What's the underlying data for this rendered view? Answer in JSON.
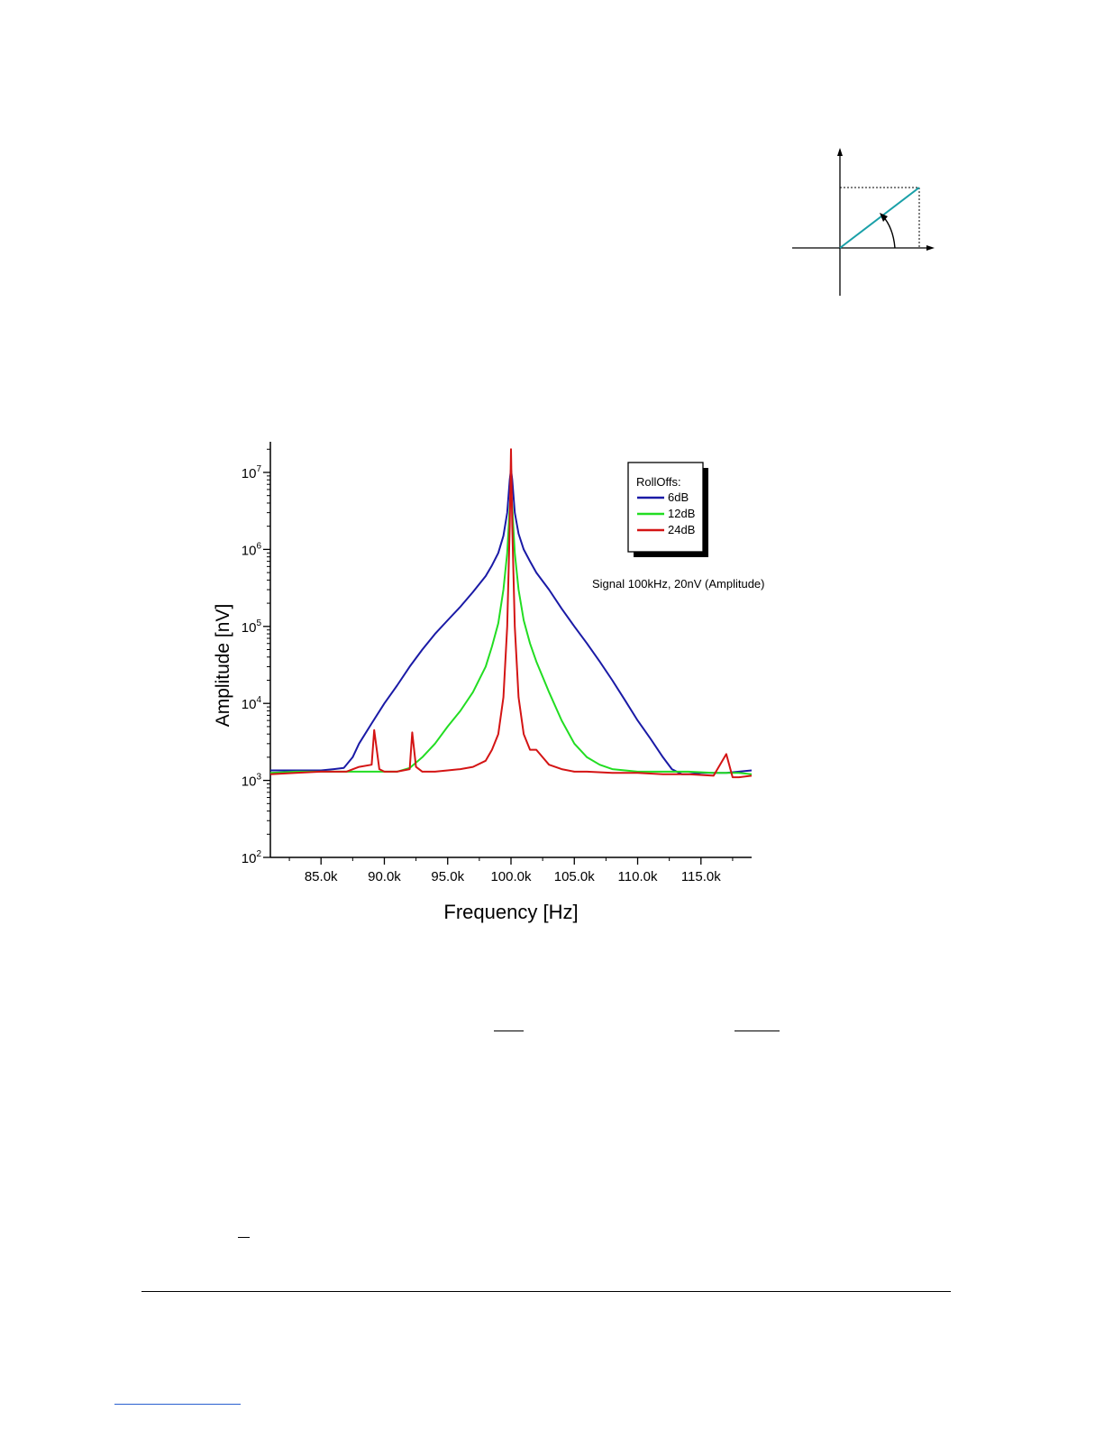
{
  "colors": {
    "series_6dB": "#1a1aa6",
    "series_12dB": "#22dd22",
    "series_24dB": "#d41414",
    "phasor_line": "#1aa0a8"
  },
  "phasor_diagram": {
    "icon": "phasor-vector-diagram"
  },
  "chart_data": {
    "type": "line",
    "title": "",
    "xlabel": "Frequency [Hz]",
    "ylabel": "Amplitude [nV]",
    "xlim": [
      81000,
      119000
    ],
    "ylim": [
      100,
      25000000
    ],
    "yscale": "log",
    "grid": false,
    "xticks": [
      85000,
      90000,
      95000,
      100000,
      105000,
      110000,
      115000
    ],
    "xtick_labels": [
      "85.0k",
      "90.0k",
      "95.0k",
      "100.0k",
      "105.0k",
      "110.0k",
      "115.0k"
    ],
    "yticks": [
      {
        "value": 100,
        "base": "10",
        "exp": "2"
      },
      {
        "value": 1000,
        "base": "10",
        "exp": "3"
      },
      {
        "value": 10000,
        "base": "10",
        "exp": "4"
      },
      {
        "value": 100000,
        "base": "10",
        "exp": "5"
      },
      {
        "value": 1000000,
        "base": "10",
        "exp": "6"
      },
      {
        "value": 10000000,
        "base": "10",
        "exp": "7"
      }
    ],
    "legend": {
      "title": "RollOffs:",
      "placement": "top-right"
    },
    "annotation": "Signal 100kHz, 20nV (Amplitude)",
    "series": [
      {
        "name": "6dB",
        "x": [
          81000,
          82000,
          83000,
          84000,
          85000,
          86000,
          86800,
          87500,
          88000,
          89000,
          90000,
          91000,
          92000,
          93000,
          94000,
          95000,
          96000,
          97000,
          98000,
          98500,
          99000,
          99400,
          99700,
          99900,
          100000,
          100100,
          100300,
          100600,
          101000,
          101500,
          102000,
          103000,
          104000,
          105000,
          106000,
          107000,
          108000,
          109000,
          110000,
          111000,
          112000,
          112700,
          113500,
          114000,
          115000,
          116000,
          117000,
          118000,
          119000
        ],
        "y": [
          1350,
          1350,
          1350,
          1350,
          1350,
          1400,
          1450,
          2000,
          3000,
          5500,
          10000,
          17000,
          30000,
          50000,
          80000,
          120000,
          180000,
          280000,
          450000,
          620000,
          900000,
          1500000,
          3000000,
          8000000,
          11000000,
          8000000,
          3000000,
          1600000,
          1000000,
          700000,
          500000,
          300000,
          170000,
          100000,
          60000,
          35000,
          20000,
          11000,
          6000,
          3500,
          2000,
          1400,
          1200,
          1200,
          1250,
          1250,
          1250,
          1300,
          1350
        ]
      },
      {
        "name": "12dB",
        "x": [
          81000,
          83000,
          85000,
          87000,
          89000,
          91000,
          92000,
          92500,
          93000,
          94000,
          95000,
          96000,
          97000,
          98000,
          98500,
          99000,
          99400,
          99700,
          99900,
          100000,
          100100,
          100300,
          100600,
          101000,
          101500,
          102000,
          103000,
          104000,
          105000,
          106000,
          107000,
          108000,
          110000,
          112000,
          114000,
          116000,
          118000,
          119000
        ],
        "y": [
          1250,
          1300,
          1300,
          1300,
          1300,
          1300,
          1450,
          1700,
          2000,
          3000,
          5000,
          8000,
          14000,
          30000,
          55000,
          110000,
          300000,
          900000,
          3500000,
          6000000,
          3500000,
          900000,
          300000,
          120000,
          60000,
          35000,
          14000,
          6000,
          3000,
          2000,
          1600,
          1400,
          1300,
          1300,
          1300,
          1250,
          1250,
          1200
        ]
      },
      {
        "name": "24dB",
        "x": [
          81000,
          83000,
          85000,
          87000,
          88000,
          89000,
          89200,
          89600,
          90000,
          91000,
          92000,
          92200,
          92500,
          93000,
          94000,
          95000,
          96000,
          97000,
          98000,
          98500,
          99000,
          99400,
          99700,
          99900,
          100000,
          100100,
          100300,
          100600,
          101000,
          101500,
          102000,
          102500,
          103000,
          104000,
          105000,
          106000,
          108000,
          110000,
          112000,
          114000,
          116000,
          117000,
          117500,
          118000,
          119000
        ],
        "y": [
          1200,
          1250,
          1300,
          1300,
          1500,
          1600,
          4500,
          1400,
          1300,
          1300,
          1400,
          4200,
          1500,
          1300,
          1300,
          1350,
          1400,
          1500,
          1800,
          2500,
          4000,
          12000,
          100000,
          2000000,
          20000000,
          2000000,
          100000,
          12000,
          4000,
          2500,
          2500,
          2000,
          1600,
          1400,
          1300,
          1300,
          1250,
          1250,
          1200,
          1200,
          1150,
          2200,
          1100,
          1100,
          1150
        ]
      }
    ]
  }
}
